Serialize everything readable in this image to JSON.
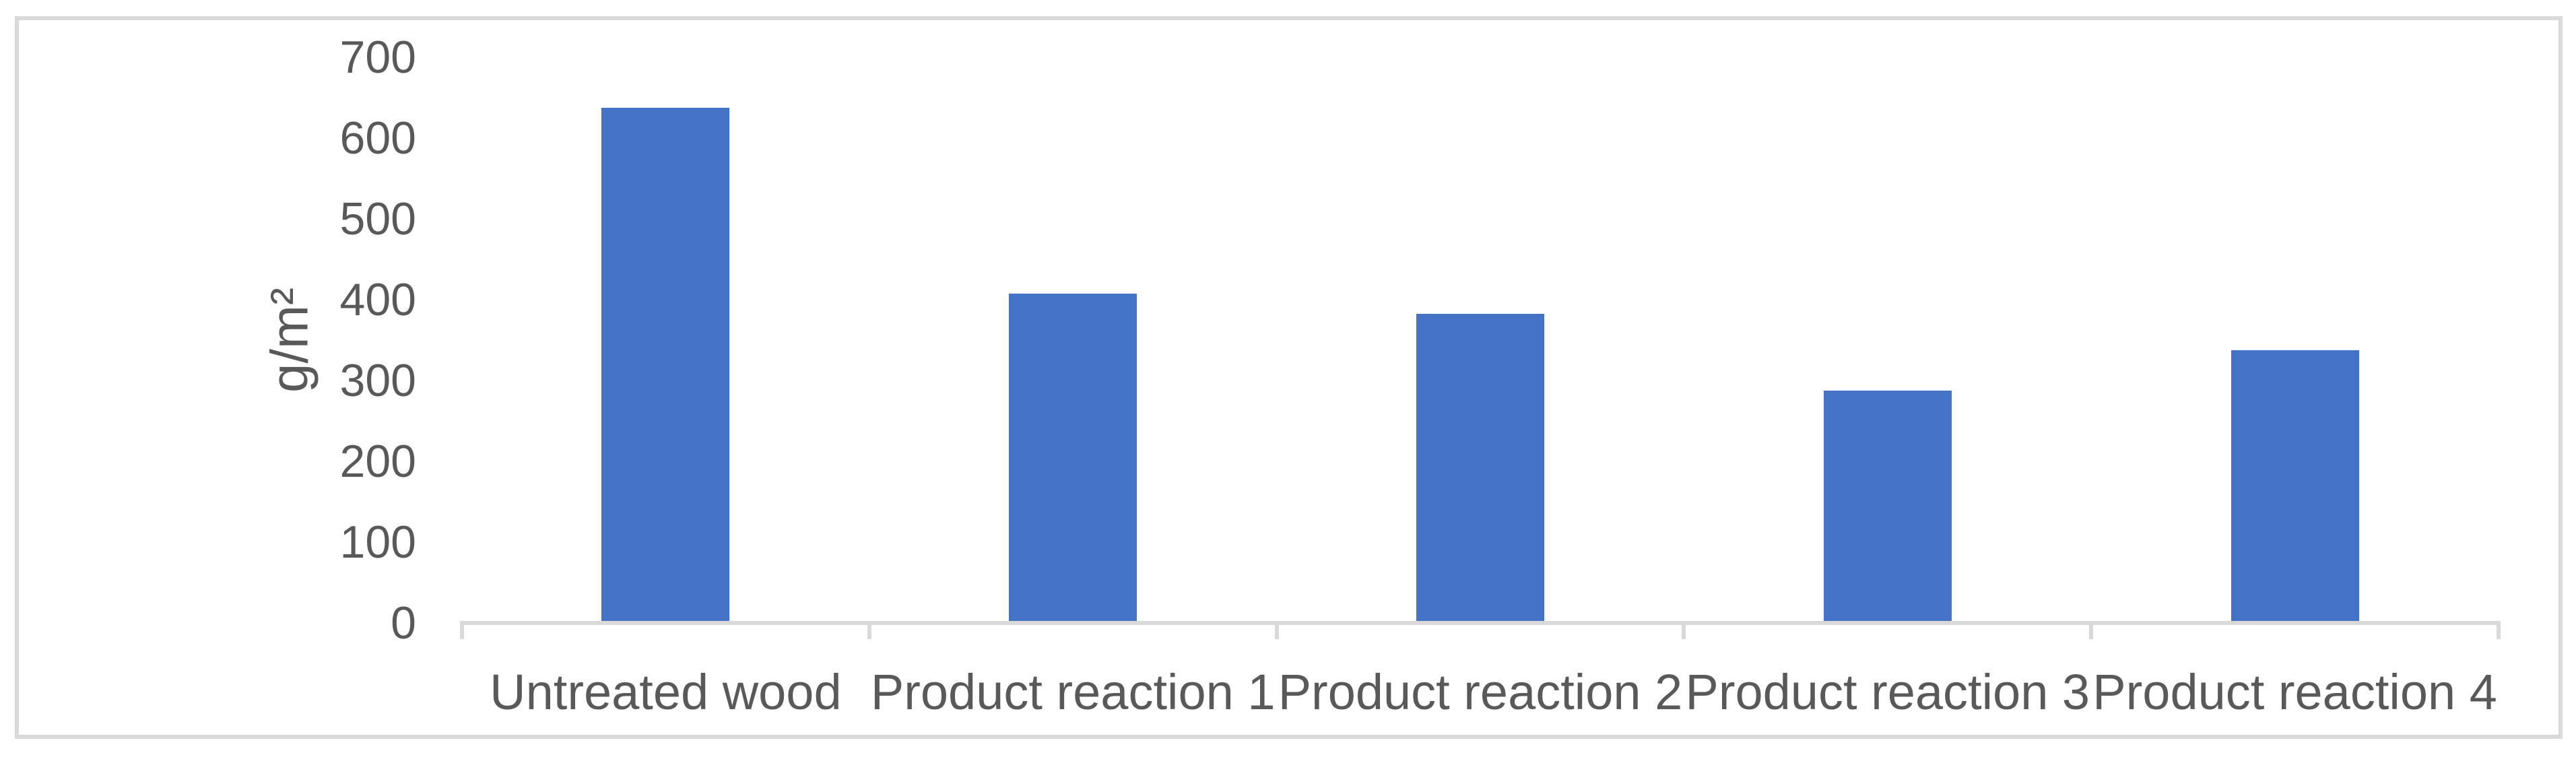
{
  "chart_data": {
    "type": "bar",
    "categories": [
      "Untreated wood",
      "Product reaction 1",
      "Product reaction 2",
      "Product reaction 3",
      "Product reaction 4"
    ],
    "values": [
      635,
      405,
      380,
      285,
      335
    ],
    "title": "",
    "xlabel": "",
    "ylabel": "g/m²",
    "ylim": [
      0,
      700
    ],
    "yticks": [
      0,
      100,
      200,
      300,
      400,
      500,
      600,
      700
    ],
    "grid": "off",
    "legend": "none",
    "bar_color": "#4472C4",
    "axis_color": "#D9D9D9",
    "text_color": "#595959"
  }
}
